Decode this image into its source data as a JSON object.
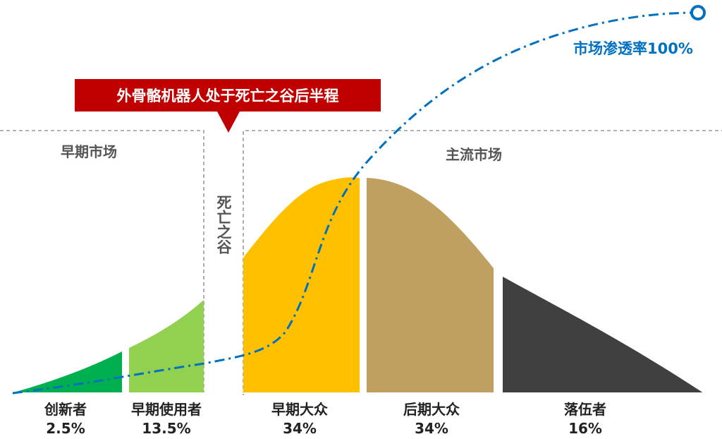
{
  "chart_data": {
    "type": "area",
    "title": "",
    "banner": "外骨骼机器人处于死亡之谷后半程",
    "chasm_label": "死亡之谷",
    "regions": [
      "早期市场",
      "主流市场"
    ],
    "segments": [
      {
        "name": "创新者",
        "value": "2.5%",
        "color": "#00B050"
      },
      {
        "name": "早期使用者",
        "value": "13.5%",
        "color": "#92D050"
      },
      {
        "name": "早期大众",
        "value": "34%",
        "color": "#FFC000"
      },
      {
        "name": "后期大众",
        "value": "34%",
        "color": "#C0A060"
      },
      {
        "name": "落伍者",
        "value": "16%",
        "color": "#404040"
      }
    ],
    "penetration_label": "市场渗透率100%",
    "penetration_color": "#0070C0",
    "banner_color": "#C00000"
  }
}
